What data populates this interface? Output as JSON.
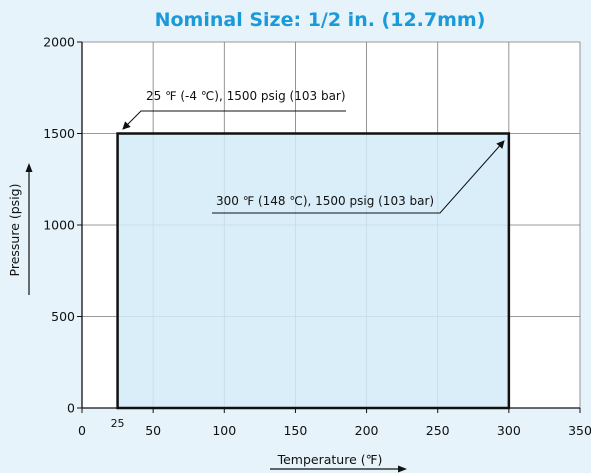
{
  "chart_data": {
    "type": "area",
    "title": "Nominal Size: 1/2 in. (12.7mm)",
    "xlabel": "Temperature (℉)",
    "ylabel": "Pressure (psig)",
    "xlim": [
      0,
      350
    ],
    "ylim": [
      0,
      2000
    ],
    "x_ticks": [
      0,
      50,
      100,
      150,
      200,
      250,
      300,
      350
    ],
    "y_ticks": [
      0,
      500,
      1000,
      1500,
      2000
    ],
    "extra_x_tick": 25,
    "grid": true,
    "region": {
      "x_min": 25,
      "x_max": 300,
      "y_min": 0,
      "y_max": 1500
    },
    "annotations": [
      {
        "text": "25 ℉ (-4 ℃), 1500 psig (103 bar)",
        "x": 25,
        "y": 1500
      },
      {
        "text": "300 ℉ (148 ℃), 1500 psig (103 bar)",
        "x": 300,
        "y": 1500
      }
    ],
    "colors": {
      "title": "#1a9ad8",
      "fill": "#d2ebf8",
      "background": "#e6f3fb",
      "plot": "#ffffff"
    }
  }
}
